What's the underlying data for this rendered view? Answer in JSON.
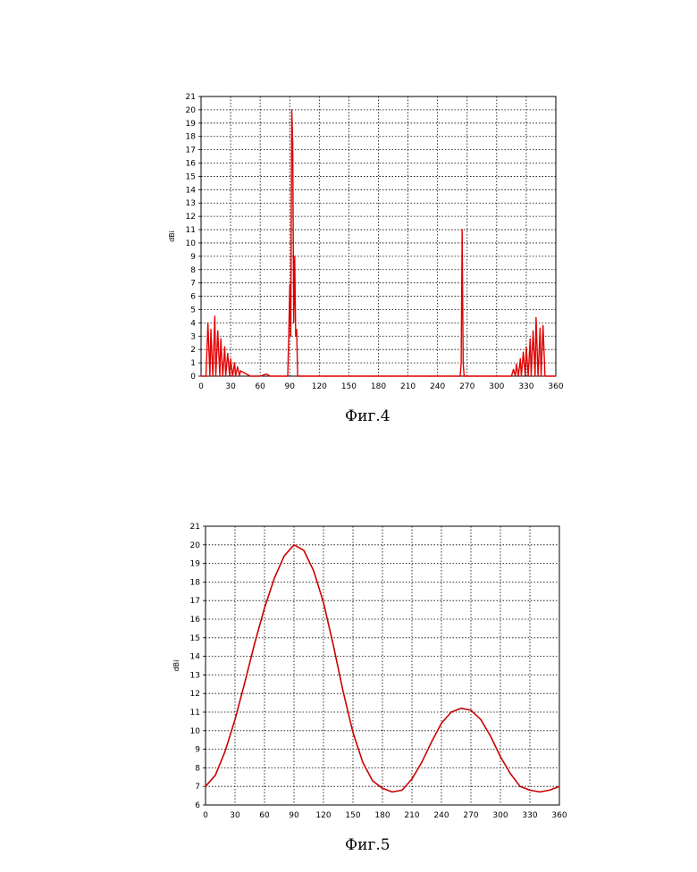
{
  "chart_data": [
    {
      "type": "line",
      "title": "",
      "xlabel": "",
      "ylabel": "dBi",
      "xlim": [
        0,
        360
      ],
      "ylim": [
        0,
        21
      ],
      "xticks": [
        0,
        30,
        60,
        90,
        120,
        150,
        180,
        210,
        240,
        270,
        300,
        330,
        360
      ],
      "yticks": [
        0,
        1,
        2,
        3,
        4,
        5,
        6,
        7,
        8,
        9,
        10,
        11,
        12,
        13,
        14,
        15,
        16,
        17,
        18,
        19,
        20,
        21
      ],
      "grid": true,
      "color": "#e00000",
      "series": [
        {
          "x": [
            0,
            5,
            7,
            9,
            10,
            12,
            14,
            15,
            17,
            19,
            20,
            22,
            24,
            25,
            27,
            29,
            30,
            32,
            34,
            35,
            37,
            39,
            40,
            50,
            60,
            64,
            66,
            68,
            70,
            80,
            88,
            89,
            90,
            91,
            92,
            93,
            94,
            95,
            96,
            97,
            98,
            100,
            120,
            150,
            180,
            210,
            240,
            262,
            263,
            264,
            265,
            266,
            267,
            268,
            280,
            300,
            315,
            317,
            319,
            320,
            322,
            324,
            325,
            327,
            329,
            330,
            332,
            334,
            335,
            337,
            339,
            340,
            342,
            344,
            345,
            347,
            349,
            350,
            352,
            354,
            355,
            360
          ],
          "y": [
            0,
            0,
            4,
            0,
            3.5,
            0,
            4.5,
            0,
            3.4,
            0,
            2.8,
            0,
            2.2,
            0,
            1.7,
            0,
            1.3,
            0,
            1.0,
            0,
            0.7,
            0,
            0.4,
            0,
            0,
            0.1,
            0.15,
            0.1,
            0,
            0,
            0,
            3,
            6.8,
            3,
            20,
            17.5,
            4,
            9,
            3,
            3.5,
            0,
            0,
            0,
            0,
            0,
            0,
            0,
            0,
            0,
            1,
            11,
            1,
            0,
            0,
            0,
            0,
            0,
            0.5,
            0,
            0.9,
            0,
            1.3,
            0,
            1.8,
            0,
            2.2,
            0,
            2.8,
            0,
            3.4,
            0,
            4.4,
            0,
            3.6,
            0,
            3.8,
            0,
            0,
            0,
            0,
            0,
            0
          ]
        }
      ],
      "caption": "Фиг.4"
    },
    {
      "type": "line",
      "title": "",
      "xlabel": "",
      "ylabel": "dBi",
      "xlim": [
        0,
        360
      ],
      "ylim": [
        6,
        21
      ],
      "xticks": [
        0,
        30,
        60,
        90,
        120,
        150,
        180,
        210,
        240,
        270,
        300,
        330,
        "360"
      ],
      "xticklabels": [
        "0",
        "30",
        "60",
        "90",
        "120",
        "150",
        "180",
        "210",
        "240",
        "270",
        "300",
        "330",
        "360"
      ],
      "yticks": [
        6,
        7,
        8,
        9,
        10,
        11,
        12,
        13,
        14,
        15,
        16,
        17,
        18,
        19,
        20,
        21
      ],
      "grid": true,
      "color": "#cc0000",
      "series": [
        {
          "x": [
            0,
            10,
            20,
            30,
            40,
            50,
            60,
            70,
            80,
            90,
            100,
            110,
            120,
            130,
            140,
            150,
            160,
            170,
            180,
            190,
            200,
            210,
            220,
            230,
            240,
            250,
            260,
            270,
            280,
            290,
            300,
            310,
            320,
            330,
            340,
            350,
            360
          ],
          "y": [
            7.0,
            7.6,
            8.9,
            10.6,
            12.6,
            14.7,
            16.6,
            18.2,
            19.4,
            20.0,
            19.7,
            18.6,
            16.9,
            14.6,
            12.1,
            9.9,
            8.3,
            7.3,
            6.9,
            6.7,
            6.8,
            7.4,
            8.3,
            9.4,
            10.4,
            11.0,
            11.2,
            11.1,
            10.6,
            9.7,
            8.6,
            7.7,
            7.0,
            6.8,
            6.7,
            6.8,
            7.0
          ]
        }
      ],
      "caption": "Фиг.5"
    }
  ]
}
